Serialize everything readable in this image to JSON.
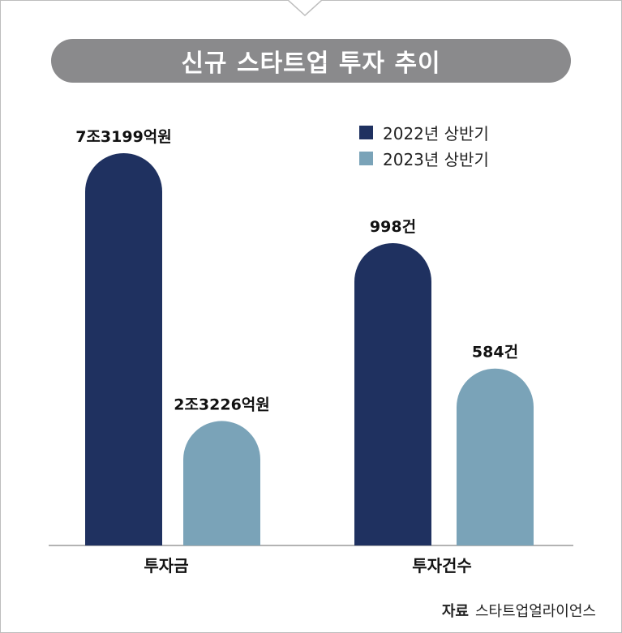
{
  "title": "신규 스타트업 투자 추이",
  "colors": {
    "series_2022": "#1f3160",
    "series_2023": "#7aa3b8",
    "title_bg": "#8a8a8c"
  },
  "source": {
    "label": "자료",
    "value": "스타트업얼라이언스"
  },
  "chart_data": {
    "type": "bar",
    "title": "신규 스타트업 투자 추이",
    "categories": [
      "투자금",
      "투자건수"
    ],
    "series": [
      {
        "name": "2022년 상반기",
        "values": [
          7.3199,
          998
        ],
        "labels": [
          "7조3199억원",
          "998건"
        ]
      },
      {
        "name": "2023년 상반기",
        "values": [
          2.3226,
          584
        ],
        "labels": [
          "2조3226억원",
          "584건"
        ]
      }
    ],
    "units": [
      "조원",
      "건"
    ],
    "legend_position": "top-right",
    "grid": false
  }
}
